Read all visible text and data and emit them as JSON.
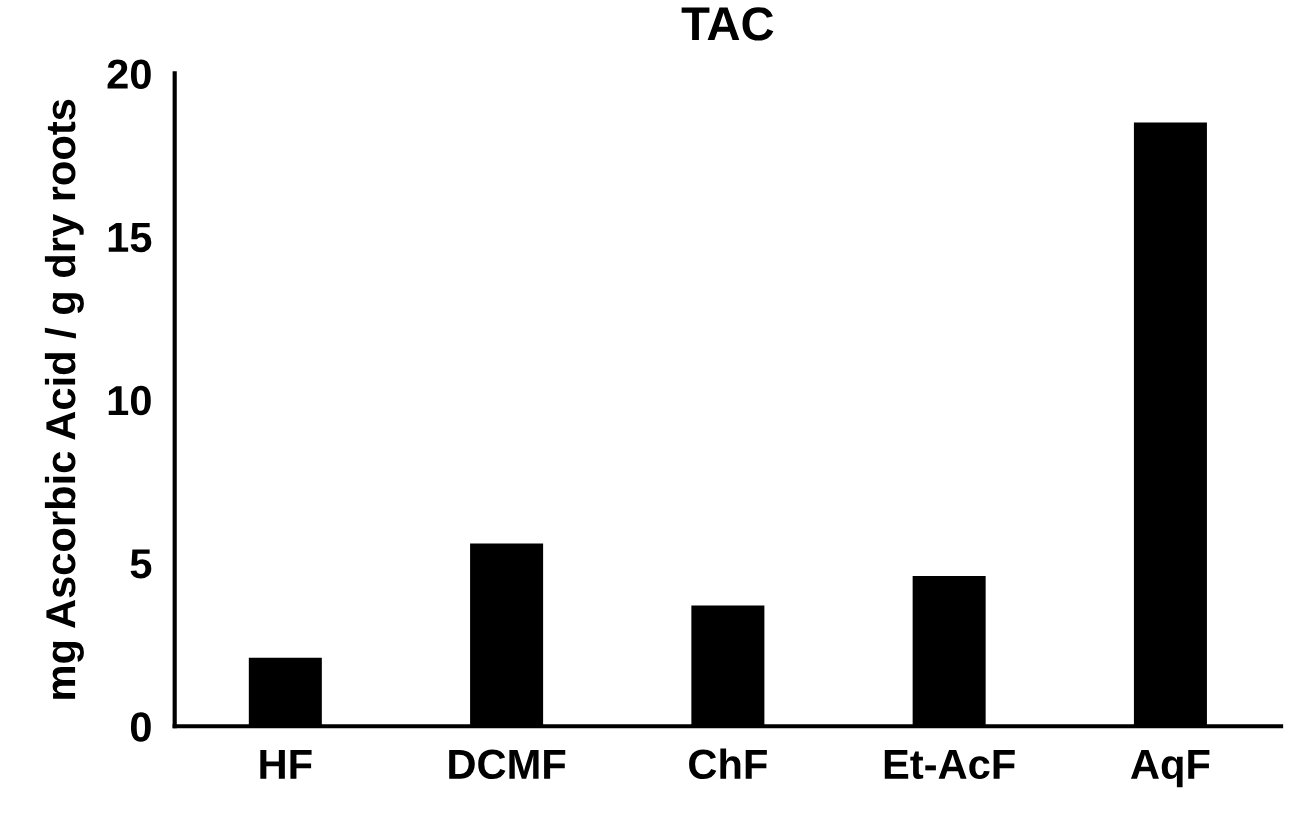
{
  "chart_data": {
    "type": "bar",
    "title": "TAC",
    "ylabel": "mg Ascorbic Acid / g dry roots",
    "categories": [
      "HF",
      "DCMF",
      "ChF",
      "Et-AcF",
      "AqF"
    ],
    "values": [
      2.1,
      5.6,
      3.7,
      4.6,
      18.5
    ],
    "color": "#000000",
    "ylim": [
      0,
      20
    ],
    "yticks": [
      0,
      5,
      10,
      15,
      20
    ],
    "grid": false
  }
}
